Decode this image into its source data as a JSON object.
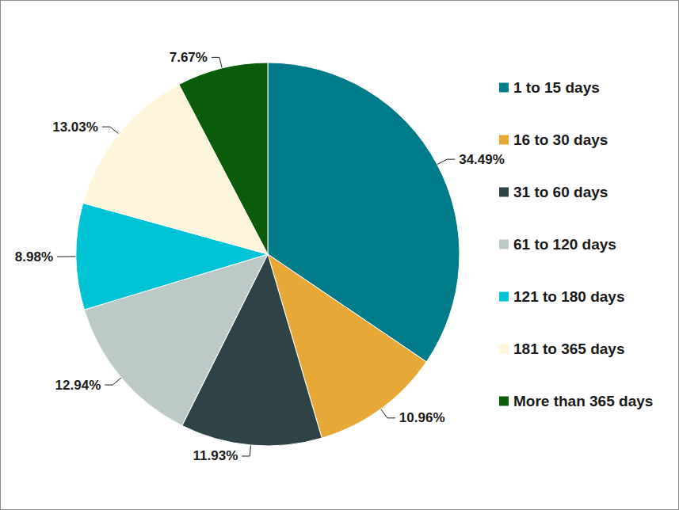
{
  "chart_data": {
    "type": "pie",
    "categories": [
      "1 to 15 days",
      "16 to 30 days",
      "31 to 60 days",
      "61 to 120 days",
      "121 to 180 days",
      "181 to 365 days",
      "More than 365 days"
    ],
    "values": [
      34.49,
      10.96,
      11.93,
      12.94,
      8.98,
      13.03,
      7.67
    ],
    "value_labels": [
      "34.49%",
      "10.96%",
      "11.93%",
      "12.94%",
      "8.98%",
      "13.03%",
      "7.67%"
    ],
    "colors": [
      "#007b8a",
      "#e8a838",
      "#2f4347",
      "#bcc9c6",
      "#00c4d6",
      "#fdf5dc",
      "#0a5c0a"
    ],
    "data_labels": true,
    "legend": "right"
  }
}
